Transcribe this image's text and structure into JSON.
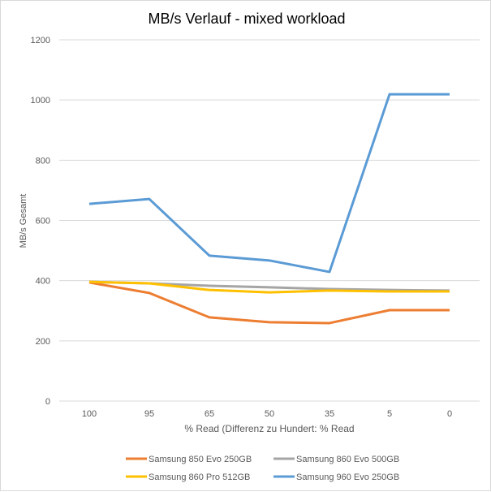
{
  "chart_data": {
    "type": "line",
    "title": "MB/s Verlauf - mixed workload",
    "xlabel": "% Read (Differenz zu Hundert: % Read",
    "ylabel": "MB/s Gesamt",
    "categories": [
      "100",
      "95",
      "65",
      "50",
      "35",
      "5",
      "0"
    ],
    "ylim": [
      0,
      1200
    ],
    "yticks": [
      0,
      200,
      400,
      600,
      800,
      1000,
      1200
    ],
    "grid": true,
    "legend_position": "bottom",
    "series": [
      {
        "name": "Samsung 850 Evo 250GB",
        "color": "#ed7d31",
        "values": [
          394,
          359,
          278,
          262,
          259,
          302,
          302
        ]
      },
      {
        "name": "Samsung 860 Evo 500GB",
        "color": "#a5a5a5",
        "values": [
          396,
          391,
          383,
          378,
          372,
          369,
          367
        ]
      },
      {
        "name": "Samsung 860 Pro 512GB",
        "color": "#ffc000",
        "values": [
          396,
          391,
          369,
          361,
          367,
          364,
          364
        ]
      },
      {
        "name": "Samsung 960 Evo 250GB",
        "color": "#5b9bd5",
        "values": [
          655,
          671,
          483,
          467,
          429,
          1019,
          1019
        ]
      }
    ]
  }
}
